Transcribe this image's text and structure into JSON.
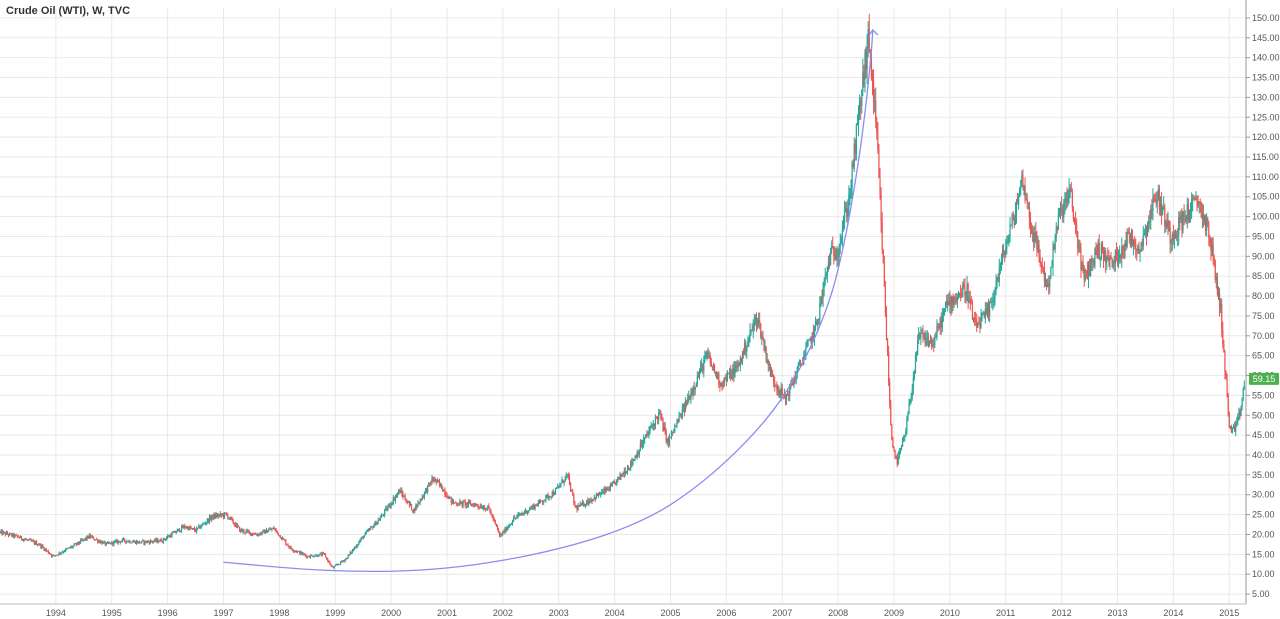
{
  "chart_data": {
    "type": "candlestick",
    "title": "Crude Oil (WTI), W, TVC",
    "y_axis": {
      "ylim": [
        2.5,
        152.5
      ],
      "ticks": [
        "5.00",
        "10.00",
        "15.00",
        "20.00",
        "25.00",
        "30.00",
        "35.00",
        "40.00",
        "45.00",
        "50.00",
        "55.00",
        "60.00",
        "65.00",
        "70.00",
        "75.00",
        "80.00",
        "85.00",
        "90.00",
        "95.00",
        "100.00",
        "105.00",
        "110.00",
        "115.00",
        "120.00",
        "125.00",
        "130.00",
        "135.00",
        "140.00",
        "145.00",
        "150.00"
      ]
    },
    "x_axis": {
      "xlim": [
        1993.0,
        2015.3
      ],
      "ticks": [
        "1994",
        "1995",
        "1996",
        "1997",
        "1998",
        "1999",
        "2000",
        "2001",
        "2002",
        "2003",
        "2004",
        "2005",
        "2006",
        "2007",
        "2008",
        "2009",
        "2010",
        "2011",
        "2012",
        "2013",
        "2014",
        "2015"
      ]
    },
    "last_value": "59.15",
    "price_path": [
      [
        1993.0,
        20.5
      ],
      [
        1993.3,
        19.5
      ],
      [
        1993.7,
        17.5
      ],
      [
        1993.95,
        14.5
      ],
      [
        1994.3,
        17.0
      ],
      [
        1994.6,
        19.5
      ],
      [
        1994.9,
        17.5
      ],
      [
        1995.2,
        18.5
      ],
      [
        1995.5,
        18.0
      ],
      [
        1995.9,
        18.5
      ],
      [
        1996.3,
        22.0
      ],
      [
        1996.5,
        21.0
      ],
      [
        1996.8,
        24.5
      ],
      [
        1997.05,
        25.0
      ],
      [
        1997.3,
        21.0
      ],
      [
        1997.6,
        20.0
      ],
      [
        1997.9,
        21.5
      ],
      [
        1998.2,
        16.5
      ],
      [
        1998.5,
        14.5
      ],
      [
        1998.8,
        15.0
      ],
      [
        1998.95,
        11.5
      ],
      [
        1999.2,
        14.0
      ],
      [
        1999.5,
        19.5
      ],
      [
        1999.8,
        24.0
      ],
      [
        2000.15,
        31.0
      ],
      [
        2000.4,
        26.0
      ],
      [
        2000.75,
        34.0
      ],
      [
        2000.9,
        32.0
      ],
      [
        2001.1,
        28.0
      ],
      [
        2001.5,
        27.5
      ],
      [
        2001.75,
        26.5
      ],
      [
        2001.95,
        19.5
      ],
      [
        2002.2,
        24.0
      ],
      [
        2002.6,
        27.5
      ],
      [
        2002.95,
        31.0
      ],
      [
        2003.15,
        35.0
      ],
      [
        2003.3,
        26.5
      ],
      [
        2003.6,
        29.0
      ],
      [
        2003.95,
        32.0
      ],
      [
        2004.3,
        38.0
      ],
      [
        2004.8,
        50.5
      ],
      [
        2004.95,
        43.0
      ],
      [
        2005.25,
        52.0
      ],
      [
        2005.65,
        65.0
      ],
      [
        2005.9,
        58.0
      ],
      [
        2006.2,
        62.0
      ],
      [
        2006.55,
        75.0
      ],
      [
        2006.8,
        60.0
      ],
      [
        2007.05,
        54.0
      ],
      [
        2007.3,
        62.0
      ],
      [
        2007.6,
        72.0
      ],
      [
        2007.85,
        90.0
      ],
      [
        2008.0,
        92.0
      ],
      [
        2008.2,
        105.0
      ],
      [
        2008.45,
        135.0
      ],
      [
        2008.55,
        145.0
      ],
      [
        2008.7,
        118.0
      ],
      [
        2008.85,
        75.0
      ],
      [
        2008.95,
        45.0
      ],
      [
        2009.05,
        38.0
      ],
      [
        2009.2,
        45.0
      ],
      [
        2009.45,
        70.0
      ],
      [
        2009.7,
        68.0
      ],
      [
        2009.95,
        78.0
      ],
      [
        2010.3,
        82.0
      ],
      [
        2010.45,
        72.0
      ],
      [
        2010.7,
        76.0
      ],
      [
        2010.95,
        90.0
      ],
      [
        2011.15,
        100.0
      ],
      [
        2011.3,
        110.0
      ],
      [
        2011.45,
        98.0
      ],
      [
        2011.75,
        82.0
      ],
      [
        2011.95,
        100.0
      ],
      [
        2012.15,
        106.0
      ],
      [
        2012.4,
        84.0
      ],
      [
        2012.65,
        92.0
      ],
      [
        2012.9,
        88.0
      ],
      [
        2013.2,
        95.0
      ],
      [
        2013.4,
        92.0
      ],
      [
        2013.7,
        106.0
      ],
      [
        2013.95,
        95.0
      ],
      [
        2014.25,
        101.0
      ],
      [
        2014.45,
        104.0
      ],
      [
        2014.65,
        95.0
      ],
      [
        2014.85,
        76.0
      ],
      [
        2015.0,
        47.0
      ],
      [
        2015.1,
        46.0
      ],
      [
        2015.2,
        51.0
      ],
      [
        2015.28,
        59.15
      ]
    ],
    "annotation_curve": {
      "type": "curve-with-arrow",
      "points": [
        [
          1997.0,
          13.0
        ],
        [
          1999.0,
          10.5
        ],
        [
          2001.0,
          11.0
        ],
        [
          2003.0,
          16.0
        ],
        [
          2004.5,
          23.0
        ],
        [
          2005.5,
          32.0
        ],
        [
          2006.5,
          45.0
        ],
        [
          2007.2,
          58.0
        ],
        [
          2007.8,
          76.0
        ],
        [
          2008.1,
          92.0
        ],
        [
          2008.35,
          112.0
        ],
        [
          2008.5,
          128.0
        ],
        [
          2008.6,
          142.0
        ],
        [
          2008.62,
          147.0
        ]
      ]
    },
    "colors": {
      "up": "#26a69a",
      "down": "#ef5350",
      "annotation": "#8c8cf0",
      "last_value_bg": "#4caf50",
      "grid": "#e9e9e9"
    },
    "grid": true
  }
}
